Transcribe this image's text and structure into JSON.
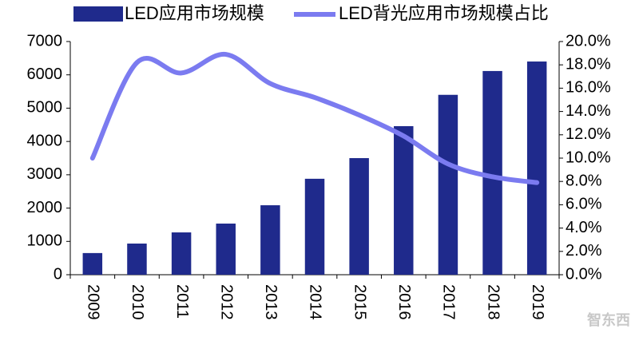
{
  "chart_data": {
    "type": "bar-line",
    "categories": [
      "2009",
      "2010",
      "2011",
      "2012",
      "2013",
      "2014",
      "2015",
      "2016",
      "2017",
      "2018",
      "2019"
    ],
    "series": [
      {
        "name": "LED应用市场规模",
        "type": "bar",
        "color": "#1f2a8c",
        "values": [
          650,
          935,
          1270,
          1535,
          2085,
          2880,
          3500,
          4460,
          5400,
          6115,
          6400
        ]
      },
      {
        "name": "LED背光应用市场规模占比",
        "type": "line",
        "color": "#7b7bf0",
        "axis": "y2",
        "values": [
          10.0,
          18.2,
          17.3,
          18.9,
          16.4,
          15.2,
          13.7,
          11.9,
          9.5,
          8.4,
          7.9
        ]
      }
    ],
    "ylim": [
      0,
      7000
    ],
    "yticks": [
      0,
      1000,
      2000,
      3000,
      4000,
      5000,
      6000,
      7000
    ],
    "y2lim": [
      0,
      20
    ],
    "y2ticks": [
      {
        "value": 0,
        "label": "0.0%"
      },
      {
        "value": 2,
        "label": "2.0%"
      },
      {
        "value": 4,
        "label": "4.0%"
      },
      {
        "value": 6,
        "label": "6.0%"
      },
      {
        "value": 8,
        "label": "8.0%"
      },
      {
        "value": 10,
        "label": "10.0%"
      },
      {
        "value": 12,
        "label": "12.0%"
      },
      {
        "value": 14,
        "label": "14.0%"
      },
      {
        "value": 16,
        "label": "16.0%"
      },
      {
        "value": 18,
        "label": "18.0%"
      },
      {
        "value": 20,
        "label": "20.0%"
      }
    ],
    "legend": "top",
    "watermark": "智东西"
  }
}
